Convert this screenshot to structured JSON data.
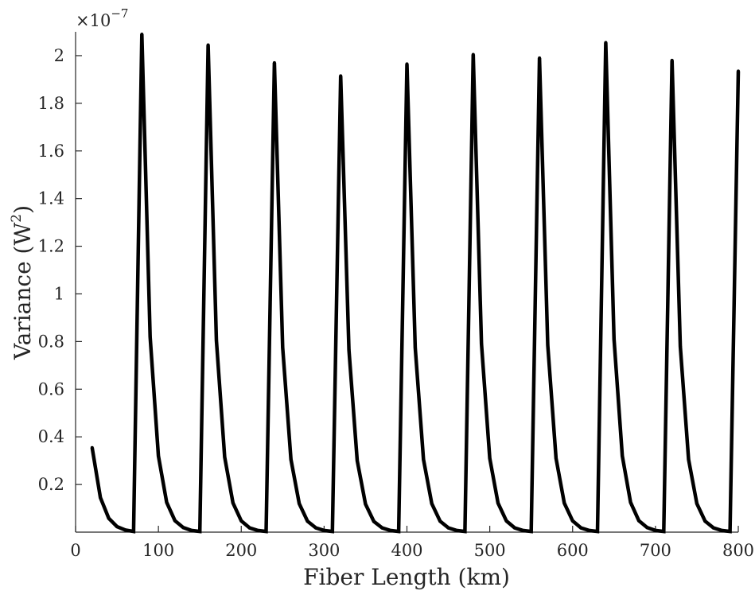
{
  "chart_data": {
    "type": "line",
    "title": "",
    "xlabel": "Fiber Length (km)",
    "ylabel_main": "Variance (W",
    "ylabel_sup": "2",
    "ylabel_tail": ")",
    "ylabel": "Variance (W²)",
    "exponent_base": "×10",
    "exponent_power": "−7",
    "xlim": [
      0,
      800
    ],
    "ylim": [
      0,
      2.1
    ],
    "xticks": [
      0,
      100,
      200,
      300,
      400,
      500,
      600,
      700,
      800
    ],
    "xtick_labels": [
      "0",
      "100",
      "200",
      "300",
      "400",
      "500",
      "600",
      "700",
      "800"
    ],
    "yticks": [
      0.2,
      0.4,
      0.6,
      0.8,
      1,
      1.2,
      1.4,
      1.6,
      1.8,
      2
    ],
    "ytick_labels": [
      "0.2",
      "0.4",
      "0.6",
      "0.8",
      "1",
      "1.2",
      "1.4",
      "1.6",
      "1.8",
      "2"
    ],
    "grid": false,
    "line_color": "#000000",
    "x": [
      20,
      30,
      40,
      50,
      60,
      70,
      80,
      90,
      100,
      110,
      120,
      130,
      140,
      150,
      160,
      170,
      180,
      190,
      200,
      210,
      220,
      230,
      240,
      250,
      260,
      270,
      280,
      290,
      300,
      310,
      320,
      330,
      340,
      350,
      360,
      370,
      380,
      390,
      400,
      410,
      420,
      430,
      440,
      450,
      460,
      470,
      480,
      490,
      500,
      510,
      520,
      530,
      540,
      550,
      560,
      570,
      580,
      590,
      600,
      610,
      620,
      630,
      640,
      650,
      660,
      670,
      680,
      690,
      700,
      710,
      720,
      730,
      740,
      750,
      760,
      770,
      780,
      790,
      800
    ],
    "y": [
      0.355,
      0.145,
      0.058,
      0.023,
      0.009,
      0.003,
      2.09,
      0.82,
      0.32,
      0.125,
      0.048,
      0.019,
      0.007,
      0.003,
      2.045,
      0.805,
      0.315,
      0.123,
      0.047,
      0.018,
      0.007,
      0.003,
      1.97,
      0.775,
      0.305,
      0.12,
      0.046,
      0.018,
      0.007,
      0.003,
      1.915,
      0.765,
      0.3,
      0.118,
      0.045,
      0.018,
      0.007,
      0.003,
      1.965,
      0.775,
      0.305,
      0.12,
      0.046,
      0.018,
      0.007,
      0.003,
      2.005,
      0.79,
      0.31,
      0.122,
      0.047,
      0.018,
      0.007,
      0.003,
      1.99,
      0.785,
      0.31,
      0.122,
      0.047,
      0.018,
      0.007,
      0.003,
      2.055,
      0.81,
      0.32,
      0.125,
      0.048,
      0.019,
      0.007,
      0.003,
      1.98,
      0.78,
      0.305,
      0.12,
      0.046,
      0.018,
      0.007,
      0.003,
      1.935
    ]
  }
}
